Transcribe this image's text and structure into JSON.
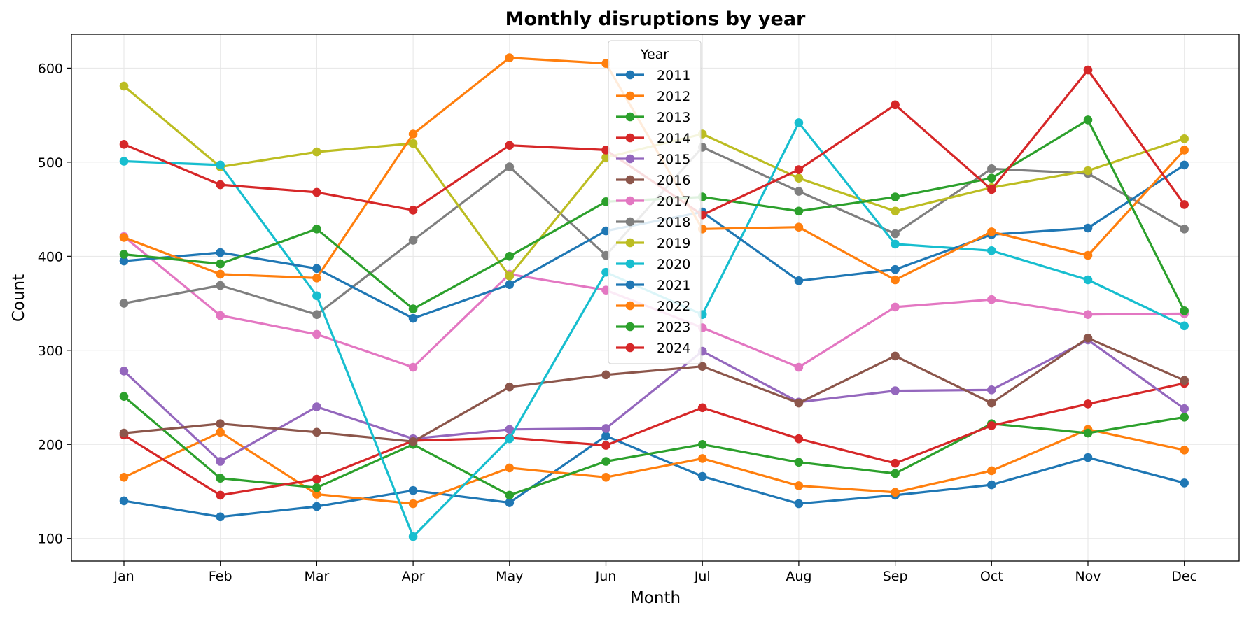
{
  "chart_data": {
    "type": "line",
    "title": "Monthly disruptions by year",
    "xlabel": "Month",
    "ylabel": "Count",
    "categories": [
      "Jan",
      "Feb",
      "Mar",
      "Apr",
      "May",
      "Jun",
      "Jul",
      "Aug",
      "Sep",
      "Oct",
      "Nov",
      "Dec"
    ],
    "ylim": [
      76,
      636
    ],
    "yticks": [
      100,
      200,
      300,
      400,
      500,
      600
    ],
    "grid": true,
    "legend": {
      "title": "Year",
      "placement": "top-center"
    },
    "series": [
      {
        "name": "2011",
        "color": "#1f77b4",
        "values": [
          140,
          123,
          134,
          151,
          138,
          209,
          166,
          137,
          146,
          157,
          186,
          159
        ]
      },
      {
        "name": "2012",
        "color": "#ff7f0e",
        "values": [
          165,
          213,
          147,
          137,
          175,
          165,
          185,
          156,
          149,
          172,
          216,
          194
        ]
      },
      {
        "name": "2013",
        "color": "#2ca02c",
        "values": [
          251,
          164,
          154,
          200,
          146,
          182,
          200,
          181,
          169,
          222,
          212,
          229
        ]
      },
      {
        "name": "2014",
        "color": "#d62728",
        "values": [
          210,
          146,
          163,
          204,
          207,
          199,
          239,
          206,
          180,
          220,
          243,
          265
        ]
      },
      {
        "name": "2015",
        "color": "#9467bd",
        "values": [
          278,
          182,
          240,
          206,
          216,
          217,
          299,
          245,
          257,
          258,
          311,
          238
        ]
      },
      {
        "name": "2016",
        "color": "#8c564b",
        "values": [
          212,
          222,
          213,
          203,
          261,
          274,
          283,
          244,
          294,
          244,
          313,
          268
        ]
      },
      {
        "name": "2017",
        "color": "#e377c2",
        "values": [
          421,
          337,
          317,
          282,
          381,
          364,
          324,
          282,
          346,
          354,
          338,
          339
        ]
      },
      {
        "name": "2018",
        "color": "#7f7f7f",
        "values": [
          350,
          369,
          338,
          417,
          495,
          401,
          516,
          469,
          424,
          493,
          488,
          429
        ]
      },
      {
        "name": "2019",
        "color": "#bcbd22",
        "values": [
          581,
          495,
          511,
          520,
          379,
          505,
          530,
          483,
          448,
          473,
          491,
          525
        ]
      },
      {
        "name": "2020",
        "color": "#17becf",
        "values": [
          501,
          497,
          358,
          102,
          206,
          383,
          338,
          542,
          413,
          406,
          375,
          326
        ]
      },
      {
        "name": "2021",
        "color": "#1f77b4",
        "values": [
          395,
          404,
          387,
          334,
          370,
          427,
          447,
          374,
          386,
          423,
          430,
          497
        ]
      },
      {
        "name": "2022",
        "color": "#ff7f0e",
        "values": [
          420,
          381,
          377,
          530,
          611,
          605,
          429,
          431,
          375,
          426,
          401,
          513
        ]
      },
      {
        "name": "2023",
        "color": "#2ca02c",
        "values": [
          402,
          392,
          429,
          344,
          400,
          458,
          463,
          448,
          463,
          483,
          545,
          342
        ]
      },
      {
        "name": "2024",
        "color": "#d62728",
        "values": [
          519,
          476,
          468,
          449,
          518,
          513,
          444,
          492,
          561,
          471,
          598,
          455
        ]
      }
    ]
  }
}
